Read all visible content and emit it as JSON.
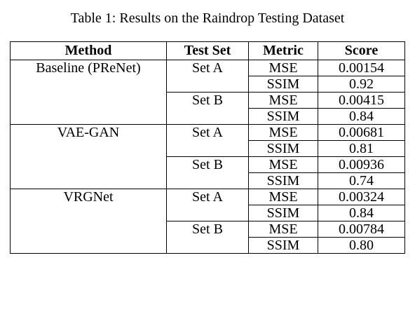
{
  "caption": "Table 1: Results on the Raindrop Testing Dataset",
  "headers": {
    "method": "Method",
    "test_set": "Test Set",
    "metric": "Metric",
    "score": "Score"
  },
  "rows": [
    {
      "method": "Baseline (PReNet)",
      "test_set": "Set A",
      "metric": "MSE",
      "score": "0.00154"
    },
    {
      "method": "",
      "test_set": "",
      "metric": "SSIM",
      "score": "0.92"
    },
    {
      "method": "",
      "test_set": "Set B",
      "metric": "MSE",
      "score": "0.00415"
    },
    {
      "method": "",
      "test_set": "",
      "metric": "SSIM",
      "score": "0.84"
    },
    {
      "method": "VAE-GAN",
      "test_set": "Set A",
      "metric": "MSE",
      "score": "0.00681"
    },
    {
      "method": "",
      "test_set": "",
      "metric": "SSIM",
      "score": "0.81"
    },
    {
      "method": "",
      "test_set": "Set B",
      "metric": "MSE",
      "score": "0.00936"
    },
    {
      "method": "",
      "test_set": "",
      "metric": "SSIM",
      "score": "0.74"
    },
    {
      "method": "VRGNet",
      "test_set": "Set A",
      "metric": "MSE",
      "score": "0.00324"
    },
    {
      "method": "",
      "test_set": "",
      "metric": "SSIM",
      "score": "0.84"
    },
    {
      "method": "",
      "test_set": "Set B",
      "metric": "MSE",
      "score": "0.00784"
    },
    {
      "method": "",
      "test_set": "",
      "metric": "SSIM",
      "score": "0.80"
    }
  ]
}
